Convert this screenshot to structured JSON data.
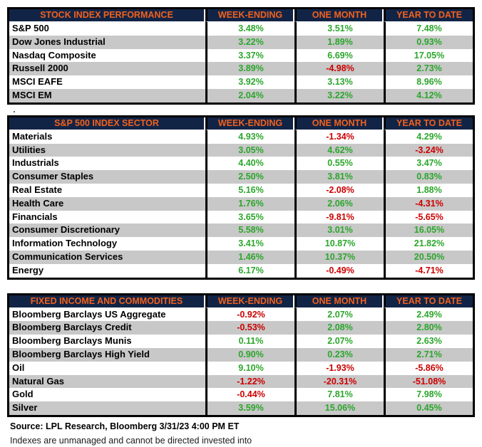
{
  "colors": {
    "header_bg": "#122446",
    "header_text": "#F2611D",
    "positive_value": "#2BA62B",
    "negative_value": "#CC0000",
    "alt_row_bg": "#C8C8C8",
    "table_border": "#000000"
  },
  "tables": [
    {
      "title": "STOCK INDEX PERFORMANCE",
      "columns": [
        "WEEK-ENDING",
        "ONE MONTH",
        "YEAR TO DATE"
      ],
      "rows": [
        {
          "label": "S&P 500",
          "values": [
            "3.48%",
            "3.51%",
            "7.48%"
          ]
        },
        {
          "label": "Dow Jones Industrial",
          "values": [
            "3.22%",
            "1.89%",
            "0.93%"
          ]
        },
        {
          "label": "Nasdaq Composite",
          "values": [
            "3.37%",
            "6.69%",
            "17.05%"
          ]
        },
        {
          "label": "Russell 2000",
          "values": [
            "3.89%",
            "-4.98%",
            "2.73%"
          ]
        },
        {
          "label": "MSCI EAFE",
          "values": [
            "3.92%",
            "3.13%",
            "8.96%"
          ]
        },
        {
          "label": "MSCI EM",
          "values": [
            "2.04%",
            "3.22%",
            "4.12%"
          ]
        }
      ]
    },
    {
      "title": "S&P 500 INDEX SECTOR",
      "columns": [
        "WEEK-ENDING",
        "ONE MONTH",
        "YEAR TO DATE"
      ],
      "rows": [
        {
          "label": "Materials",
          "values": [
            "4.93%",
            "-1.34%",
            "4.29%"
          ]
        },
        {
          "label": "Utilities",
          "values": [
            "3.05%",
            "4.62%",
            "-3.24%"
          ]
        },
        {
          "label": "Industrials",
          "values": [
            "4.40%",
            "0.55%",
            "3.47%"
          ]
        },
        {
          "label": "Consumer Staples",
          "values": [
            "2.50%",
            "3.81%",
            "0.83%"
          ]
        },
        {
          "label": "Real Estate",
          "values": [
            "5.16%",
            "-2.08%",
            "1.88%"
          ]
        },
        {
          "label": "Health Care",
          "values": [
            "1.76%",
            "2.06%",
            "-4.31%"
          ]
        },
        {
          "label": "Financials",
          "values": [
            "3.65%",
            "-9.81%",
            "-5.65%"
          ]
        },
        {
          "label": "Consumer Discretionary",
          "values": [
            "5.58%",
            "3.01%",
            "16.05%"
          ]
        },
        {
          "label": "Information Technology",
          "values": [
            "3.41%",
            "10.87%",
            "21.82%"
          ]
        },
        {
          "label": "Communication Services",
          "values": [
            "1.46%",
            "10.37%",
            "20.50%"
          ]
        },
        {
          "label": "Energy",
          "values": [
            "6.17%",
            "-0.49%",
            "-4.71%"
          ]
        }
      ]
    },
    {
      "title": "FIXED INCOME AND COMMODITIES",
      "columns": [
        "WEEK-ENDING",
        "ONE MONTH",
        "YEAR TO DATE"
      ],
      "rows": [
        {
          "label": "Bloomberg Barclays US Aggregate",
          "values": [
            "-0.92%",
            "2.07%",
            "2.49%"
          ]
        },
        {
          "label": "Bloomberg Barclays Credit",
          "values": [
            "-0.53%",
            "2.08%",
            "2.80%"
          ]
        },
        {
          "label": "Bloomberg Barclays Munis",
          "values": [
            "0.11%",
            "2.07%",
            "2.63%"
          ]
        },
        {
          "label": "Bloomberg Barclays High Yield",
          "values": [
            "0.90%",
            "0.23%",
            "2.71%"
          ]
        },
        {
          "label": "Oil",
          "values": [
            "9.10%",
            "-1.93%",
            "-5.86%"
          ]
        },
        {
          "label": "Natural Gas",
          "values": [
            "-1.22%",
            "-20.31%",
            "-51.08%"
          ]
        },
        {
          "label": "Gold",
          "values": [
            "-0.44%",
            "7.81%",
            "7.98%"
          ]
        },
        {
          "label": "Silver",
          "values": [
            "3.59%",
            "15.06%",
            "0.45%"
          ]
        }
      ]
    }
  ],
  "footer": {
    "source": "Source: LPL Research, Bloomberg 3/31/23 4:00 PM ET",
    "disclaimer": "Indexes are unmanaged and cannot be directed invested into"
  }
}
